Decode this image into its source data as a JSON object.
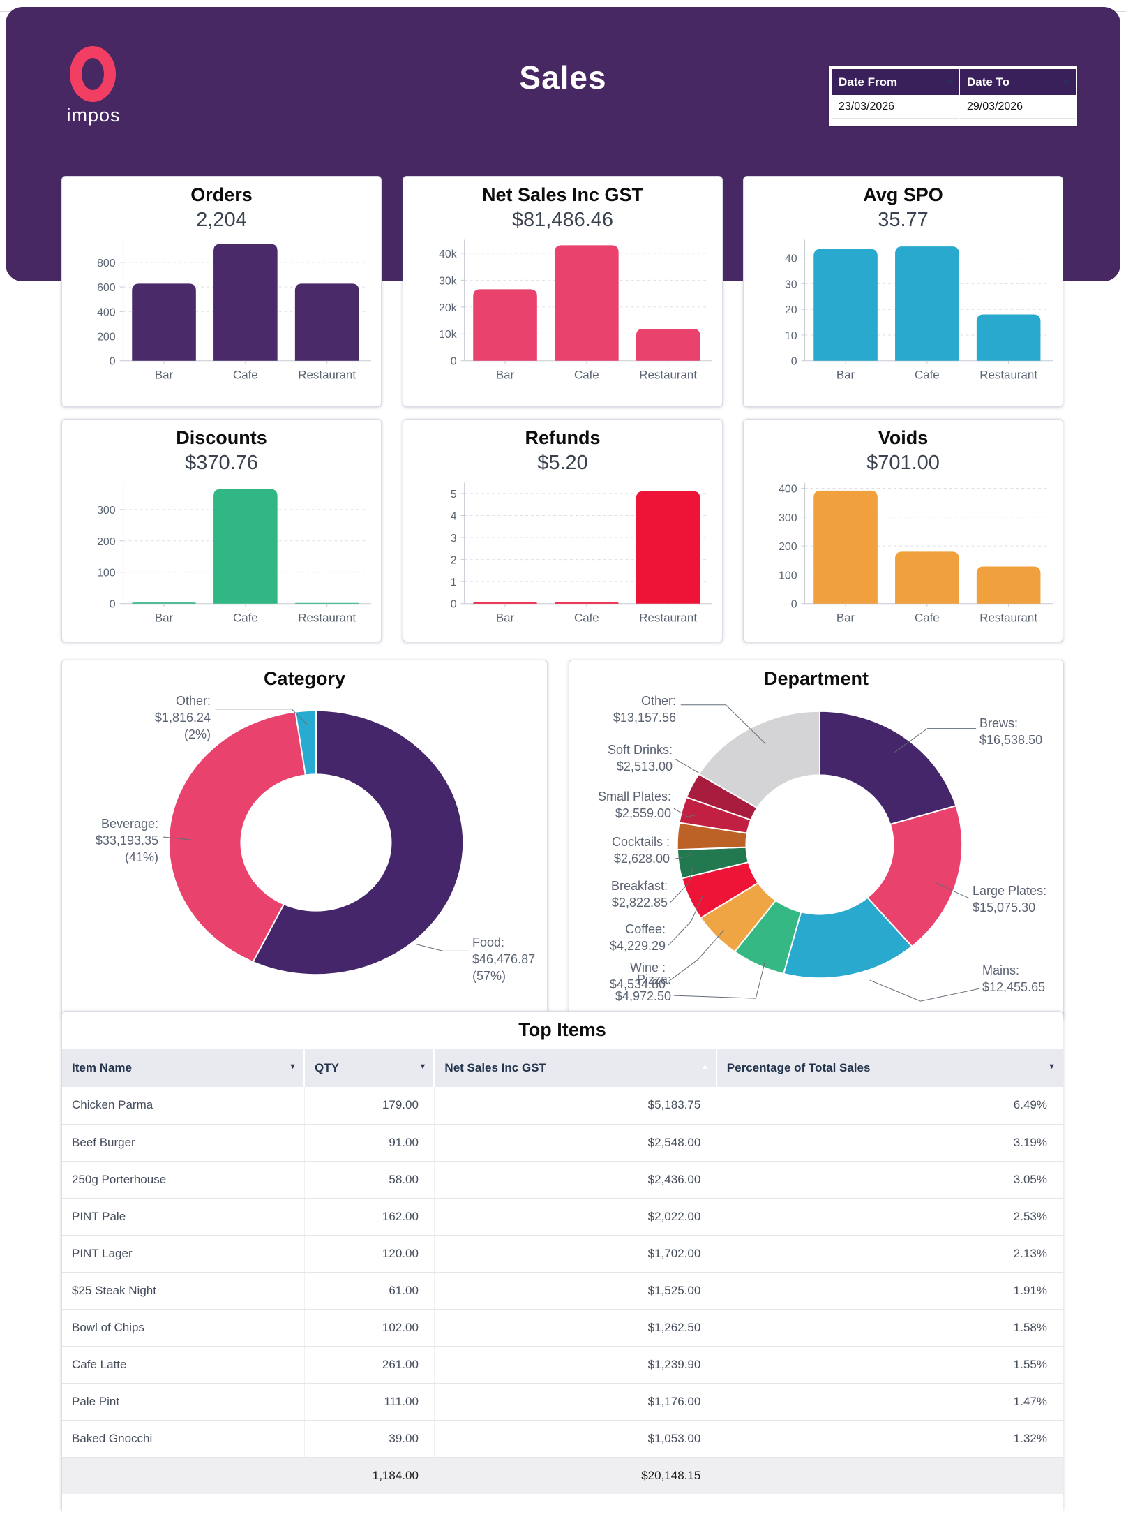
{
  "header": {
    "logo_text": "impos",
    "title": "Sales",
    "date_filter": {
      "from_label": "Date From",
      "to_label": "Date To",
      "from_value": "23/03/2026",
      "to_value": "29/03/2026"
    }
  },
  "chart_data": [
    {
      "id": "orders",
      "type": "bar",
      "title": "Orders",
      "total_label": "2,204",
      "bar_color": "#4a2a68",
      "categories": [
        "Bar",
        "Cafe",
        "Restaurant"
      ],
      "values": [
        627,
        950,
        627
      ],
      "ylim": [
        0,
        950
      ],
      "grid": true,
      "yticks": [
        {
          "v": 0,
          "l": "0"
        },
        {
          "v": 200,
          "l": "200"
        },
        {
          "v": 400,
          "l": "400"
        },
        {
          "v": 600,
          "l": "600"
        },
        {
          "v": 800,
          "l": "800"
        }
      ]
    },
    {
      "id": "net_sales",
      "type": "bar",
      "title": "Net Sales Inc GST",
      "total_label": "$81,486.46",
      "bar_color": "#e8426d",
      "categories": [
        "Bar",
        "Cafe",
        "Restaurant"
      ],
      "values": [
        26600,
        43000,
        11886
      ],
      "ylim": [
        0,
        43500
      ],
      "grid": true,
      "yticks": [
        {
          "v": 0,
          "l": "0"
        },
        {
          "v": 10000,
          "l": "10k"
        },
        {
          "v": 20000,
          "l": "20k"
        },
        {
          "v": 30000,
          "l": "30k"
        },
        {
          "v": 40000,
          "l": "40k"
        }
      ]
    },
    {
      "id": "avg_spo",
      "type": "bar",
      "title": "Avg SPO",
      "total_label": "35.77",
      "bar_color": "#29a9cd",
      "categories": [
        "Bar",
        "Cafe",
        "Restaurant"
      ],
      "values": [
        43.5,
        44.5,
        18
      ],
      "ylim": [
        0,
        45.5
      ],
      "grid": true,
      "yticks": [
        {
          "v": 0,
          "l": "0"
        },
        {
          "v": 10,
          "l": "10"
        },
        {
          "v": 20,
          "l": "20"
        },
        {
          "v": 30,
          "l": "30"
        },
        {
          "v": 40,
          "l": "40"
        }
      ]
    },
    {
      "id": "discounts",
      "type": "bar",
      "title": "Discounts",
      "total_label": "$370.76",
      "bar_color": "#31b784",
      "categories": [
        "Bar",
        "Cafe",
        "Restaurant"
      ],
      "values": [
        3.5,
        365,
        2.26
      ],
      "ylim": [
        0,
        372
      ],
      "grid": true,
      "yticks": [
        {
          "v": 0,
          "l": "0"
        },
        {
          "v": 100,
          "l": "100"
        },
        {
          "v": 200,
          "l": "200"
        },
        {
          "v": 300,
          "l": "300"
        }
      ]
    },
    {
      "id": "refunds",
      "type": "bar",
      "title": "Refunds",
      "total_label": "$5.20",
      "bar_color": "#ee1437",
      "categories": [
        "Bar",
        "Cafe",
        "Restaurant"
      ],
      "values": [
        0.05,
        0.05,
        5.1
      ],
      "ylim": [
        0,
        5.3
      ],
      "grid": true,
      "yticks": [
        {
          "v": 0,
          "l": "0"
        },
        {
          "v": 1,
          "l": "1"
        },
        {
          "v": 2,
          "l": "2"
        },
        {
          "v": 3,
          "l": "3"
        },
        {
          "v": 4,
          "l": "4"
        },
        {
          "v": 5,
          "l": "5"
        }
      ]
    },
    {
      "id": "voids",
      "type": "bar",
      "title": "Voids",
      "total_label": "$701.00",
      "bar_color": "#f0a03c",
      "categories": [
        "Bar",
        "Cafe",
        "Restaurant"
      ],
      "values": [
        392,
        180,
        129
      ],
      "ylim": [
        0,
        405
      ],
      "grid": true,
      "yticks": [
        {
          "v": 0,
          "l": "0"
        },
        {
          "v": 100,
          "l": "100"
        },
        {
          "v": 200,
          "l": "200"
        },
        {
          "v": 300,
          "l": "300"
        },
        {
          "v": 400,
          "l": "400"
        }
      ]
    },
    {
      "id": "category",
      "type": "pie",
      "title": "Category",
      "slices": [
        {
          "name": "Food",
          "value": 46476.87,
          "color": "#45266b",
          "label_lines": [
            "Food:",
            "$46,476.87",
            "(57%)"
          ]
        },
        {
          "name": "Beverage",
          "value": 33193.35,
          "color": "#e8426d",
          "label_lines": [
            "Beverage:",
            "$33,193.35",
            "(41%)"
          ]
        },
        {
          "name": "Other",
          "value": 1816.24,
          "color": "#27abd1",
          "label_lines": [
            "Other:",
            "$1,816.24",
            "(2%)"
          ]
        }
      ]
    },
    {
      "id": "department",
      "type": "pie",
      "title": "Department",
      "slices": [
        {
          "name": "Brews",
          "value": 16538.5,
          "color": "#45266b",
          "label_lines": [
            "Brews:",
            "$16,538.50"
          ]
        },
        {
          "name": "Large Plates",
          "value": 15075.3,
          "color": "#e8426d",
          "label_lines": [
            "Large Plates:",
            "$15,075.30"
          ]
        },
        {
          "name": "Mains",
          "value": 12455.65,
          "color": "#29a9cd",
          "label_lines": [
            "Mains:",
            "$12,455.65"
          ]
        },
        {
          "name": "Pizza",
          "value": 4972.5,
          "color": "#36b884",
          "label_lines": [
            "Pizza:",
            "$4,972.50"
          ]
        },
        {
          "name": "Wine",
          "value": 4534.8,
          "color": "#f0a544",
          "label_lines": [
            "Wine :",
            "$4,534.80"
          ]
        },
        {
          "name": "Coffee",
          "value": 4229.29,
          "color": "#ee1437",
          "label_lines": [
            "Coffee:",
            "$4,229.29"
          ]
        },
        {
          "name": "Breakfast",
          "value": 2822.85,
          "color": "#23794f",
          "label_lines": [
            "Breakfast:",
            "$2,822.85"
          ]
        },
        {
          "name": "Cocktails",
          "value": 2628.0,
          "color": "#bd6226",
          "label_lines": [
            "Cocktails :",
            "$2,628.00"
          ]
        },
        {
          "name": "Small Plates",
          "value": 2559.0,
          "color": "#c22043",
          "label_lines": [
            "Small Plates:",
            "$2,559.00"
          ]
        },
        {
          "name": "Soft Drinks",
          "value": 2513.0,
          "color": "#a81c3d",
          "label_lines": [
            "Soft Drinks:",
            "$2,513.00"
          ]
        },
        {
          "name": "Other",
          "value": 13157.56,
          "color": "#d4d4d6",
          "label_lines": [
            "Other:",
            "$13,157.56"
          ]
        }
      ]
    },
    {
      "id": "top_items",
      "type": "table",
      "title": "Top Items",
      "columns": [
        {
          "label": "Item Name",
          "sort": "desc",
          "align": "left"
        },
        {
          "label": "QTY",
          "sort": "desc",
          "align": "right"
        },
        {
          "label": "Net Sales Inc GST",
          "sort": "asc_active",
          "align": "right"
        },
        {
          "label": "Percentage of Total Sales",
          "sort": "desc",
          "align": "right"
        }
      ],
      "rows": [
        [
          "Chicken Parma",
          "179.00",
          "$5,183.75",
          "6.49%"
        ],
        [
          "Beef Burger",
          "91.00",
          "$2,548.00",
          "3.19%"
        ],
        [
          "250g Porterhouse",
          "58.00",
          "$2,436.00",
          "3.05%"
        ],
        [
          "PINT Pale",
          "162.00",
          "$2,022.00",
          "2.53%"
        ],
        [
          "PINT Lager",
          "120.00",
          "$1,702.00",
          "2.13%"
        ],
        [
          "$25 Steak Night",
          "61.00",
          "$1,525.00",
          "1.91%"
        ],
        [
          "Bowl of Chips",
          "102.00",
          "$1,262.50",
          "1.58%"
        ],
        [
          "Cafe Latte",
          "261.00",
          "$1,239.90",
          "1.55%"
        ],
        [
          "Pale Pint",
          "111.00",
          "$1,176.00",
          "1.47%"
        ],
        [
          "Baked Gnocchi",
          "39.00",
          "$1,053.00",
          "1.32%"
        ]
      ],
      "totals": [
        "",
        "1,184.00",
        "$20,148.15",
        ""
      ]
    }
  ]
}
